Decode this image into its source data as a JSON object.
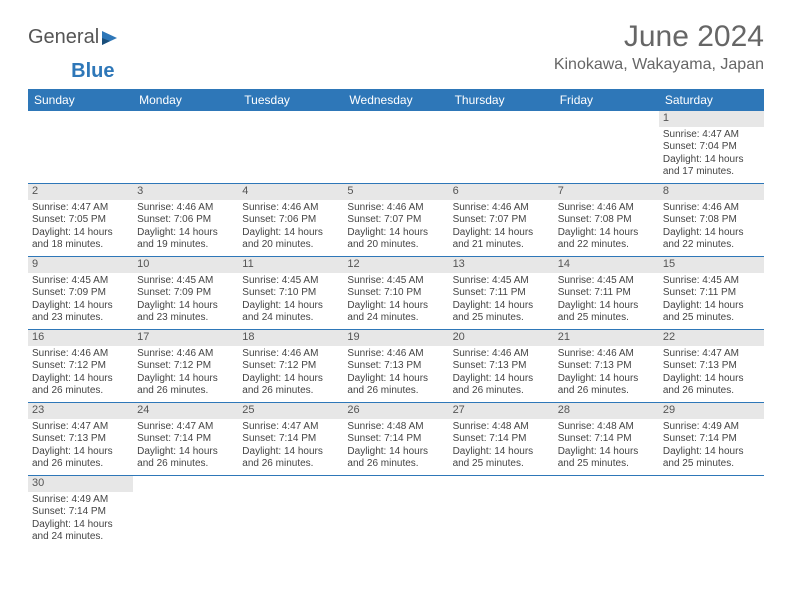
{
  "logo": {
    "text1": "General",
    "text2": "Blue"
  },
  "title": "June 2024",
  "location": "Kinokawa, Wakayama, Japan",
  "colors": {
    "header_bg": "#2e77b8",
    "header_text": "#ffffff",
    "daynum_bg": "#e7e7e7",
    "row_border": "#2e77b8",
    "body_text": "#444444",
    "title_text": "#666666"
  },
  "weekdays": [
    "Sunday",
    "Monday",
    "Tuesday",
    "Wednesday",
    "Thursday",
    "Friday",
    "Saturday"
  ],
  "weeks": [
    [
      null,
      null,
      null,
      null,
      null,
      null,
      {
        "n": "1",
        "sr": "4:47 AM",
        "ss": "7:04 PM",
        "dl": "14 hours and 17 minutes."
      }
    ],
    [
      {
        "n": "2",
        "sr": "4:47 AM",
        "ss": "7:05 PM",
        "dl": "14 hours and 18 minutes."
      },
      {
        "n": "3",
        "sr": "4:46 AM",
        "ss": "7:06 PM",
        "dl": "14 hours and 19 minutes."
      },
      {
        "n": "4",
        "sr": "4:46 AM",
        "ss": "7:06 PM",
        "dl": "14 hours and 20 minutes."
      },
      {
        "n": "5",
        "sr": "4:46 AM",
        "ss": "7:07 PM",
        "dl": "14 hours and 20 minutes."
      },
      {
        "n": "6",
        "sr": "4:46 AM",
        "ss": "7:07 PM",
        "dl": "14 hours and 21 minutes."
      },
      {
        "n": "7",
        "sr": "4:46 AM",
        "ss": "7:08 PM",
        "dl": "14 hours and 22 minutes."
      },
      {
        "n": "8",
        "sr": "4:46 AM",
        "ss": "7:08 PM",
        "dl": "14 hours and 22 minutes."
      }
    ],
    [
      {
        "n": "9",
        "sr": "4:45 AM",
        "ss": "7:09 PM",
        "dl": "14 hours and 23 minutes."
      },
      {
        "n": "10",
        "sr": "4:45 AM",
        "ss": "7:09 PM",
        "dl": "14 hours and 23 minutes."
      },
      {
        "n": "11",
        "sr": "4:45 AM",
        "ss": "7:10 PM",
        "dl": "14 hours and 24 minutes."
      },
      {
        "n": "12",
        "sr": "4:45 AM",
        "ss": "7:10 PM",
        "dl": "14 hours and 24 minutes."
      },
      {
        "n": "13",
        "sr": "4:45 AM",
        "ss": "7:11 PM",
        "dl": "14 hours and 25 minutes."
      },
      {
        "n": "14",
        "sr": "4:45 AM",
        "ss": "7:11 PM",
        "dl": "14 hours and 25 minutes."
      },
      {
        "n": "15",
        "sr": "4:45 AM",
        "ss": "7:11 PM",
        "dl": "14 hours and 25 minutes."
      }
    ],
    [
      {
        "n": "16",
        "sr": "4:46 AM",
        "ss": "7:12 PM",
        "dl": "14 hours and 26 minutes."
      },
      {
        "n": "17",
        "sr": "4:46 AM",
        "ss": "7:12 PM",
        "dl": "14 hours and 26 minutes."
      },
      {
        "n": "18",
        "sr": "4:46 AM",
        "ss": "7:12 PM",
        "dl": "14 hours and 26 minutes."
      },
      {
        "n": "19",
        "sr": "4:46 AM",
        "ss": "7:13 PM",
        "dl": "14 hours and 26 minutes."
      },
      {
        "n": "20",
        "sr": "4:46 AM",
        "ss": "7:13 PM",
        "dl": "14 hours and 26 minutes."
      },
      {
        "n": "21",
        "sr": "4:46 AM",
        "ss": "7:13 PM",
        "dl": "14 hours and 26 minutes."
      },
      {
        "n": "22",
        "sr": "4:47 AM",
        "ss": "7:13 PM",
        "dl": "14 hours and 26 minutes."
      }
    ],
    [
      {
        "n": "23",
        "sr": "4:47 AM",
        "ss": "7:13 PM",
        "dl": "14 hours and 26 minutes."
      },
      {
        "n": "24",
        "sr": "4:47 AM",
        "ss": "7:14 PM",
        "dl": "14 hours and 26 minutes."
      },
      {
        "n": "25",
        "sr": "4:47 AM",
        "ss": "7:14 PM",
        "dl": "14 hours and 26 minutes."
      },
      {
        "n": "26",
        "sr": "4:48 AM",
        "ss": "7:14 PM",
        "dl": "14 hours and 26 minutes."
      },
      {
        "n": "27",
        "sr": "4:48 AM",
        "ss": "7:14 PM",
        "dl": "14 hours and 25 minutes."
      },
      {
        "n": "28",
        "sr": "4:48 AM",
        "ss": "7:14 PM",
        "dl": "14 hours and 25 minutes."
      },
      {
        "n": "29",
        "sr": "4:49 AM",
        "ss": "7:14 PM",
        "dl": "14 hours and 25 minutes."
      }
    ],
    [
      {
        "n": "30",
        "sr": "4:49 AM",
        "ss": "7:14 PM",
        "dl": "14 hours and 24 minutes."
      },
      null,
      null,
      null,
      null,
      null,
      null
    ]
  ],
  "labels": {
    "sunrise": "Sunrise:",
    "sunset": "Sunset:",
    "daylight": "Daylight:"
  }
}
